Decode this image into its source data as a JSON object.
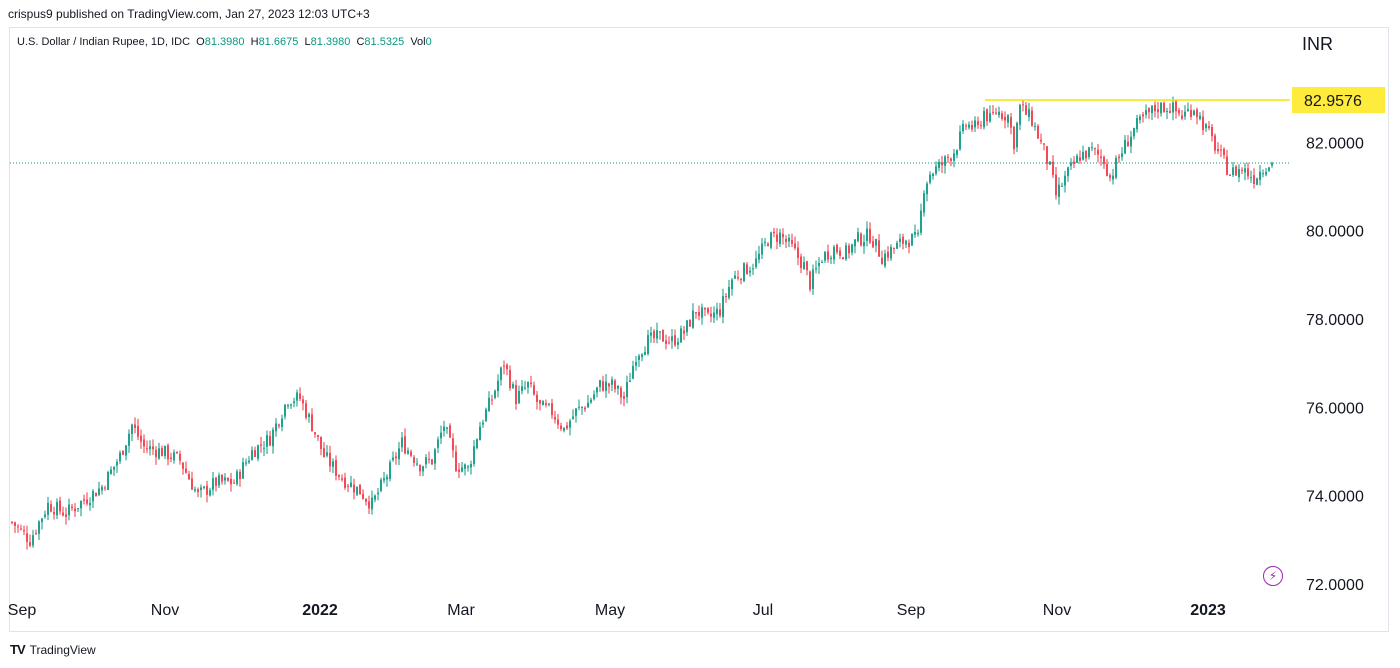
{
  "header": {
    "published": "crispus9 published on TradingView.com, Jan 27, 2023 12:03 UTC+3"
  },
  "legend": {
    "symbol": "U.S. Dollar / Indian Rupee, 1D, IDC",
    "open_label": "O",
    "open": "81.3980",
    "high_label": "H",
    "high": "81.6675",
    "low_label": "L",
    "low": "81.3980",
    "close_label": "C",
    "close": "81.5325",
    "vol_label": "Vol",
    "vol": "0"
  },
  "footer": {
    "brand": "TradingView",
    "logo": "TV"
  },
  "bolt_icon": "lightning-icon",
  "chart_data": {
    "type": "candlestick",
    "currency": "INR",
    "ylim": [
      72,
      84
    ],
    "yticks": [
      "72.0000",
      "74.0000",
      "76.0000",
      "78.0000",
      "80.0000",
      "82.0000"
    ],
    "xticks": [
      {
        "label": "Sep",
        "bold": false
      },
      {
        "label": "Nov",
        "bold": false
      },
      {
        "label": "2022",
        "bold": true
      },
      {
        "label": "Mar",
        "bold": false
      },
      {
        "label": "May",
        "bold": false
      },
      {
        "label": "Jul",
        "bold": false
      },
      {
        "label": "Sep",
        "bold": false
      },
      {
        "label": "Nov",
        "bold": false
      },
      {
        "label": "2023",
        "bold": true
      }
    ],
    "resistance_level": 82.9576,
    "resistance_label": "82.9576",
    "last_price": 81.5325,
    "colors": {
      "up": "#089981",
      "down": "#f23645",
      "resistance": "#ffeb3b",
      "last": "#089981"
    },
    "close_path": [
      [
        0,
        73.4
      ],
      [
        6,
        73.0
      ],
      [
        12,
        73.8
      ],
      [
        18,
        73.6
      ],
      [
        24,
        73.9
      ],
      [
        30,
        74.2
      ],
      [
        36,
        74.9
      ],
      [
        40,
        75.6
      ],
      [
        44,
        75.1
      ],
      [
        50,
        75.0
      ],
      [
        56,
        74.8
      ],
      [
        62,
        74.0
      ],
      [
        68,
        74.3
      ],
      [
        74,
        74.3
      ],
      [
        80,
        75.0
      ],
      [
        86,
        75.3
      ],
      [
        92,
        76.2
      ],
      [
        96,
        76.2
      ],
      [
        100,
        75.6
      ],
      [
        104,
        74.9
      ],
      [
        110,
        74.4
      ],
      [
        116,
        74.1
      ],
      [
        120,
        73.8
      ],
      [
        126,
        74.6
      ],
      [
        130,
        75.2
      ],
      [
        136,
        74.7
      ],
      [
        140,
        74.8
      ],
      [
        144,
        75.6
      ],
      [
        148,
        74.7
      ],
      [
        152,
        74.6
      ],
      [
        156,
        75.6
      ],
      [
        160,
        76.2
      ],
      [
        164,
        77.0
      ],
      [
        168,
        76.2
      ],
      [
        172,
        76.5
      ],
      [
        176,
        76.0
      ],
      [
        180,
        75.9
      ],
      [
        184,
        75.5
      ],
      [
        188,
        75.9
      ],
      [
        192,
        76.1
      ],
      [
        196,
        76.5
      ],
      [
        200,
        76.5
      ],
      [
        204,
        76.2
      ],
      [
        208,
        77.2
      ],
      [
        212,
        77.5
      ],
      [
        216,
        77.6
      ],
      [
        220,
        77.5
      ],
      [
        224,
        77.7
      ],
      [
        228,
        78.2
      ],
      [
        232,
        78.0
      ],
      [
        236,
        78.2
      ],
      [
        240,
        78.9
      ],
      [
        244,
        79.1
      ],
      [
        248,
        79.3
      ],
      [
        252,
        79.8
      ],
      [
        256,
        79.9
      ],
      [
        260,
        79.6
      ],
      [
        264,
        79.2
      ],
      [
        266,
        78.8
      ],
      [
        270,
        79.4
      ],
      [
        274,
        79.6
      ],
      [
        278,
        79.5
      ],
      [
        282,
        79.8
      ],
      [
        286,
        79.9
      ],
      [
        290,
        79.4
      ],
      [
        294,
        79.6
      ],
      [
        298,
        79.8
      ],
      [
        302,
        79.8
      ],
      [
        304,
        81.0
      ],
      [
        306,
        81.3
      ],
      [
        310,
        81.5
      ],
      [
        314,
        81.8
      ],
      [
        318,
        82.4
      ],
      [
        322,
        82.3
      ],
      [
        324,
        82.7
      ],
      [
        326,
        82.5
      ],
      [
        328,
        82.7
      ],
      [
        332,
        82.6
      ],
      [
        334,
        82.0
      ],
      [
        336,
        82.8
      ],
      [
        340,
        82.5
      ],
      [
        344,
        81.8
      ],
      [
        346,
        81.4
      ],
      [
        348,
        80.8
      ],
      [
        352,
        81.3
      ],
      [
        356,
        81.7
      ],
      [
        360,
        81.8
      ],
      [
        364,
        81.6
      ],
      [
        366,
        81.2
      ],
      [
        370,
        81.8
      ],
      [
        374,
        82.3
      ],
      [
        378,
        82.6
      ],
      [
        382,
        82.8
      ],
      [
        386,
        82.8
      ],
      [
        390,
        82.6
      ],
      [
        394,
        82.8
      ],
      [
        398,
        82.3
      ],
      [
        402,
        81.8
      ],
      [
        406,
        81.3
      ],
      [
        410,
        81.4
      ],
      [
        414,
        81.2
      ],
      [
        418,
        81.5
      ],
      [
        420,
        81.53
      ]
    ],
    "close_path_note_removed": true
  }
}
